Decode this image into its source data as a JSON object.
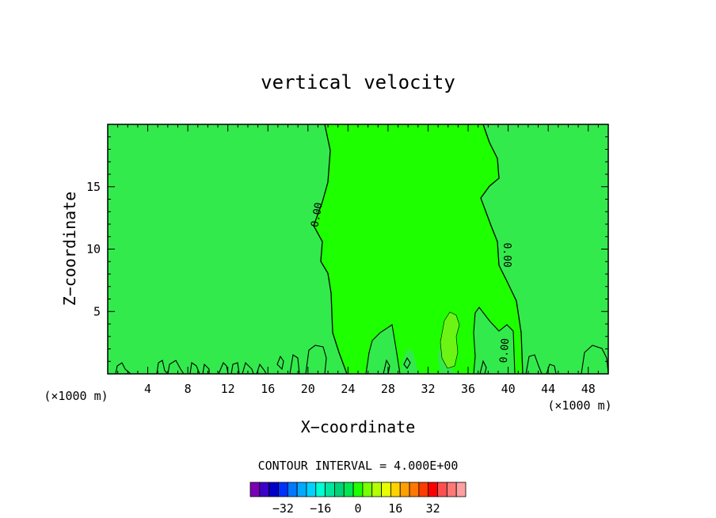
{
  "chart_data": {
    "type": "contour",
    "title": "vertical velocity",
    "xlabel": "X−coordinate",
    "ylabel": "Z−coordinate",
    "x_unit_left": "(×1000 m)",
    "x_unit_right": "(×1000 m)",
    "xlim": [
      0,
      50
    ],
    "ylim": [
      0,
      20
    ],
    "x_ticks": [
      {
        "value": 4,
        "label": "4"
      },
      {
        "value": 8,
        "label": "8"
      },
      {
        "value": 12,
        "label": "12"
      },
      {
        "value": 16,
        "label": "16"
      },
      {
        "value": 20,
        "label": "20"
      },
      {
        "value": 24,
        "label": "24"
      },
      {
        "value": 28,
        "label": "28"
      },
      {
        "value": 32,
        "label": "32"
      },
      {
        "value": 36,
        "label": "36"
      },
      {
        "value": 40,
        "label": "40"
      },
      {
        "value": 44,
        "label": "44"
      },
      {
        "value": 48,
        "label": "48"
      }
    ],
    "y_ticks": [
      {
        "value": 5,
        "label": "5"
      },
      {
        "value": 10,
        "label": "10"
      },
      {
        "value": 15,
        "label": "15"
      }
    ],
    "contour_labels": [
      "0.00",
      "0.00",
      "0.00"
    ],
    "contour_interval_text": "CONTOUR INTERVAL = 4.000E+00",
    "colorbar": {
      "colors": [
        "#7a00b4",
        "#3c00c8",
        "#0000c8",
        "#0032ff",
        "#0078ff",
        "#00aaff",
        "#00d2ff",
        "#00ffd2",
        "#00e6a0",
        "#00d278",
        "#00e650",
        "#20ff00",
        "#78ff00",
        "#b4ff00",
        "#e6ff00",
        "#ffd200",
        "#ffa000",
        "#ff7800",
        "#ff3c00",
        "#ff0000",
        "#ff5050",
        "#ff7878",
        "#ffa0a0"
      ],
      "tick_labels": [
        "−32",
        "−16",
        "0",
        "16",
        "32"
      ],
      "tick_values": [
        -32,
        -16,
        0,
        16,
        32
      ]
    },
    "fill_colors": {
      "negative_side": "#33ea4c",
      "positive_side": "#1eff00",
      "max_region": "#6cf514"
    }
  }
}
